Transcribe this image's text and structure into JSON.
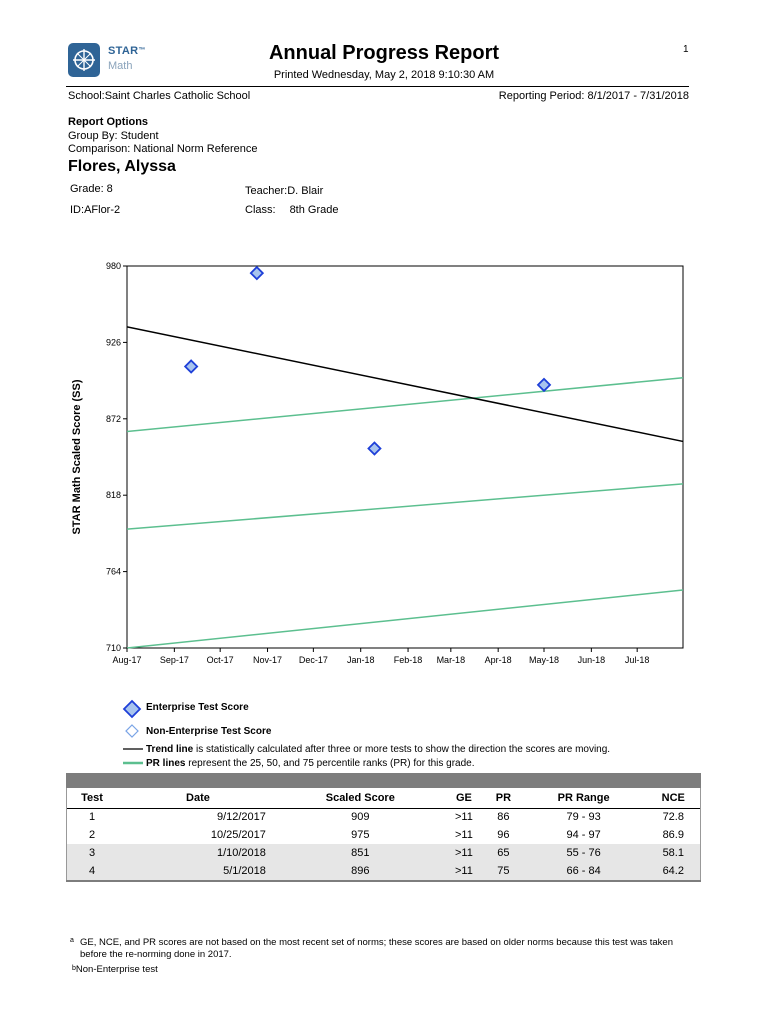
{
  "header": {
    "logo_star": "STAR",
    "logo_tm": "™",
    "logo_math": "Math",
    "title": "Annual Progress Report",
    "printed": "Printed Wednesday, May 2, 2018 9:10:30 AM",
    "page_number": "1",
    "brand_color": "#2f6496"
  },
  "school": {
    "label": "School:",
    "value": "Saint Charles Catholic School"
  },
  "reporting_period": "Reporting Period: 8/1/2017 - 7/31/2018",
  "report_options": {
    "heading": "Report Options",
    "group_by": "Group By: Student",
    "comparison": "Comparison:  National Norm Reference"
  },
  "student": {
    "name": "Flores, Alyssa",
    "grade": "Grade: 8",
    "teacher_label": "Teacher:",
    "teacher": "D. Blair",
    "id_label": "ID:",
    "id": "AFlor-2",
    "class_label": "Class:",
    "class": "8th Grade"
  },
  "chart_data": {
    "type": "scatter",
    "ylabel": "STAR Math Scaled Score (SS)",
    "ylim": [
      710,
      980
    ],
    "yticks": [
      710,
      764,
      818,
      872,
      926,
      980
    ],
    "xlim": [
      "2017-08-01",
      "2018-07-31"
    ],
    "xticks": [
      "Aug-17",
      "Sep-17",
      "Oct-17",
      "Nov-17",
      "Dec-17",
      "Jan-18",
      "Feb-18",
      "Mar-18",
      "Apr-18",
      "May-18",
      "Jun-18",
      "Jul-18"
    ],
    "grid": false,
    "points": [
      {
        "date": "2017-09-12",
        "value": 909,
        "type": "enterprise"
      },
      {
        "date": "2017-10-25",
        "value": 975,
        "type": "enterprise"
      },
      {
        "date": "2018-01-10",
        "value": 851,
        "type": "enterprise"
      },
      {
        "date": "2018-05-01",
        "value": 896,
        "type": "enterprise"
      }
    ],
    "trend_line": {
      "start": [
        "2017-08-01",
        937
      ],
      "end": [
        "2018-07-31",
        856
      ],
      "color": "#000000"
    },
    "pr_lines": [
      {
        "start": [
          "2017-08-01",
          710
        ],
        "end": [
          "2018-07-31",
          751
        ],
        "color": "#5cbf8f"
      },
      {
        "start": [
          "2017-08-01",
          794
        ],
        "end": [
          "2018-07-31",
          826
        ],
        "color": "#5cbf8f"
      },
      {
        "start": [
          "2017-08-01",
          863
        ],
        "end": [
          "2018-07-31",
          901
        ],
        "color": "#5cbf8f"
      }
    ],
    "marker_color": "#1e3fd8",
    "marker_fill": "#a8c4ee"
  },
  "legend": {
    "enterprise": "Enterprise Test Score",
    "non_enterprise": "Non-Enterprise Test Score",
    "trend_bold": "Trend line",
    "trend_rest": " is statistically calculated after three or more tests to show the direction the scores are moving.",
    "pr_bold": "PR lines",
    "pr_rest": " represent the 25, 50, and 75 percentile ranks (PR) for this grade."
  },
  "table": {
    "headers": [
      "Test",
      "Date",
      "Scaled Score",
      "GE",
      "PR",
      "PR Range",
      "NCE"
    ],
    "rows": [
      [
        "1",
        "9/12/2017",
        "909",
        ">11",
        "86",
        "79 - 93",
        "72.8"
      ],
      [
        "2",
        "10/25/2017",
        "975",
        ">11",
        "96",
        "94 - 97",
        "86.9"
      ],
      [
        "3",
        "1/10/2018",
        "851",
        ">11",
        "65",
        "55 - 76",
        "58.1"
      ],
      [
        "4",
        "5/1/2018",
        "896",
        ">11",
        "75",
        "66 - 84",
        "64.2"
      ]
    ]
  },
  "footnotes": {
    "a_mark": "a",
    "a_text": "GE, NCE, and PR scores are not based on the most recent set of norms; these scores are based on older norms because this test was taken before the re-norming done in 2017.",
    "b_mark": "b",
    "b_text": "Non-Enterprise test"
  }
}
